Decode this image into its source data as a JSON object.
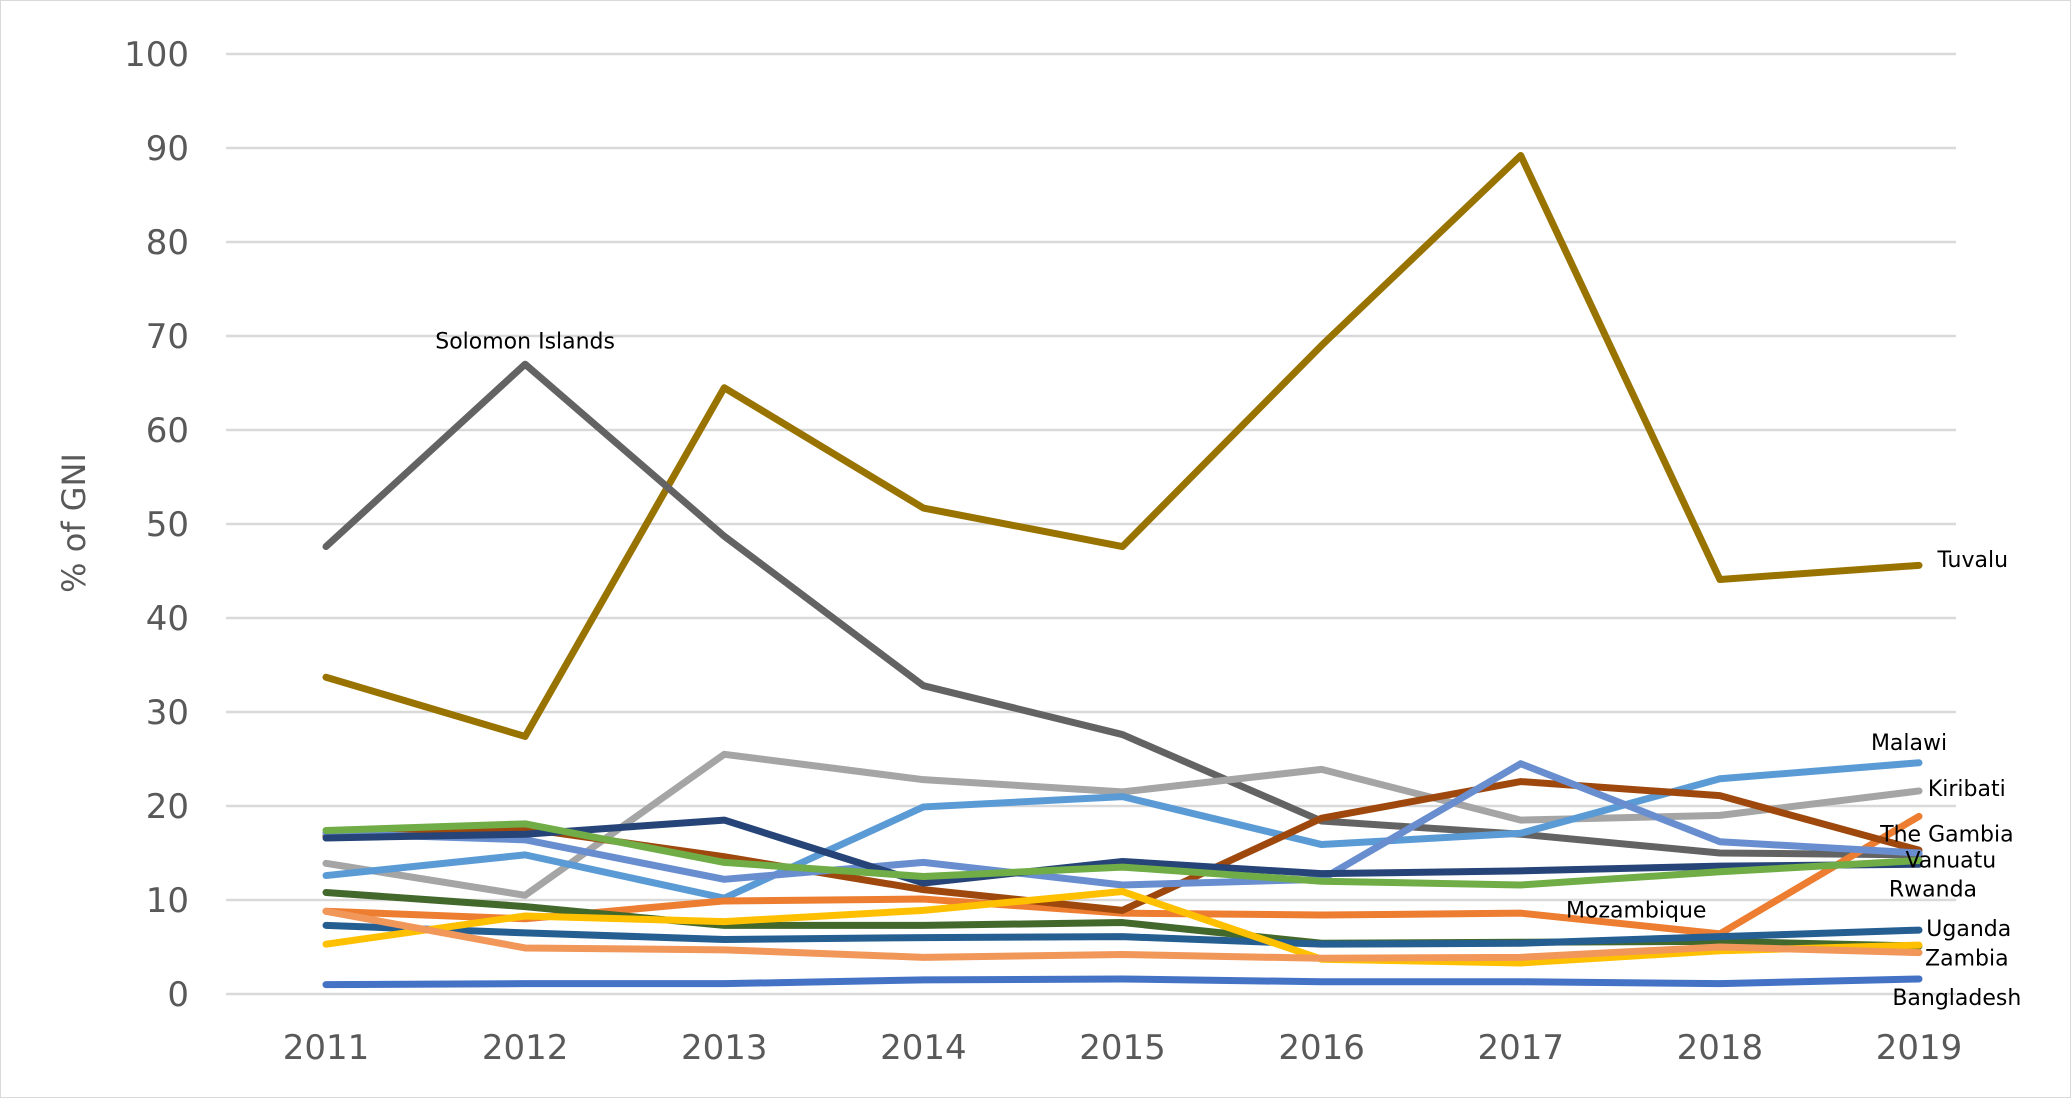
{
  "chart_data": {
    "type": "line",
    "title": "",
    "xlabel": "",
    "ylabel": "% of GNI",
    "ylim": [
      0,
      100
    ],
    "yticks": [
      0,
      10,
      20,
      30,
      40,
      50,
      60,
      70,
      80,
      90,
      100
    ],
    "grid": true,
    "legend": "none",
    "categories": [
      "2011",
      "2012",
      "2013",
      "2014",
      "2015",
      "2016",
      "2017",
      "2018",
      "2019"
    ],
    "series": [
      {
        "color": "#997300",
        "values": [
          33.7,
          27.4,
          64.5,
          51.7,
          47.6,
          69.0,
          89.2,
          44.1,
          45.6
        ]
      },
      {
        "color": "#636363",
        "values": [
          47.6,
          67.0,
          48.7,
          32.8,
          27.6,
          18.4,
          17.0,
          15.0,
          14.8
        ]
      },
      {
        "color": "#a5a5a5",
        "values": [
          13.9,
          10.5,
          25.5,
          22.8,
          21.5,
          23.9,
          18.5,
          19.0,
          21.6
        ]
      },
      {
        "color": "#5b9bd5",
        "values": [
          12.6,
          14.8,
          10.2,
          19.9,
          21.0,
          15.9,
          17.1,
          22.9,
          24.6
        ]
      },
      {
        "color": "#ed7d31",
        "values": [
          8.8,
          8.0,
          9.9,
          10.1,
          8.6,
          8.4,
          8.6,
          6.4,
          18.9
        ]
      },
      {
        "color": "#9e480e",
        "values": [
          16.8,
          17.6,
          14.6,
          11.1,
          8.9,
          18.7,
          22.6,
          21.1,
          15.3
        ]
      },
      {
        "color": "#698ed0",
        "values": [
          17.1,
          16.4,
          12.2,
          14.0,
          11.6,
          12.2,
          24.5,
          16.2,
          15.0
        ]
      },
      {
        "color": "#264478",
        "values": [
          16.6,
          17.0,
          18.5,
          11.8,
          14.1,
          12.8,
          13.1,
          13.6,
          13.8
        ]
      },
      {
        "color": "#70ad47",
        "values": [
          17.4,
          18.1,
          14.0,
          12.5,
          13.5,
          12.0,
          11.6,
          13.0,
          14.2
        ]
      },
      {
        "color": "#43682b",
        "values": [
          10.8,
          9.3,
          7.3,
          7.3,
          7.6,
          5.4,
          5.5,
          5.6,
          5.1
        ]
      },
      {
        "color": "#255e91",
        "values": [
          7.3,
          6.5,
          5.8,
          6.0,
          6.1,
          5.3,
          5.4,
          6.1,
          6.8
        ]
      },
      {
        "color": "#ffc000",
        "values": [
          5.3,
          8.3,
          7.7,
          8.9,
          10.9,
          3.7,
          3.3,
          4.6,
          5.2
        ]
      },
      {
        "color": "#f1975a",
        "values": [
          8.8,
          4.9,
          4.7,
          3.9,
          4.2,
          3.8,
          3.9,
          5.0,
          4.4
        ]
      },
      {
        "color": "#4472c4",
        "values": [
          1.0,
          1.1,
          1.1,
          1.5,
          1.6,
          1.3,
          1.3,
          1.1,
          1.6
        ]
      }
    ],
    "annotations": [
      {
        "text": "Solomon Islands",
        "x": 2012,
        "y": 69.5
      },
      {
        "text": "Tuvalu",
        "x": 2019.27,
        "y": 46.3
      },
      {
        "text": "Malawi",
        "x": 2018.95,
        "y": 26.8
      },
      {
        "text": "Kiribati",
        "x": 2019.24,
        "y": 21.9
      },
      {
        "text": "The Gambia",
        "x": 2019.14,
        "y": 17.1
      },
      {
        "text": "Vanuatu",
        "x": 2019.16,
        "y": 14.3
      },
      {
        "text": "Rwanda",
        "x": 2019.07,
        "y": 11.2
      },
      {
        "text": "Mozambique",
        "x": 2017.58,
        "y": 9.0
      },
      {
        "text": "Uganda",
        "x": 2019.25,
        "y": 7.0
      },
      {
        "text": "Zambia",
        "x": 2019.24,
        "y": 3.9
      },
      {
        "text": "Bangladesh",
        "x": 2019.19,
        "y": -0.3
      }
    ]
  }
}
